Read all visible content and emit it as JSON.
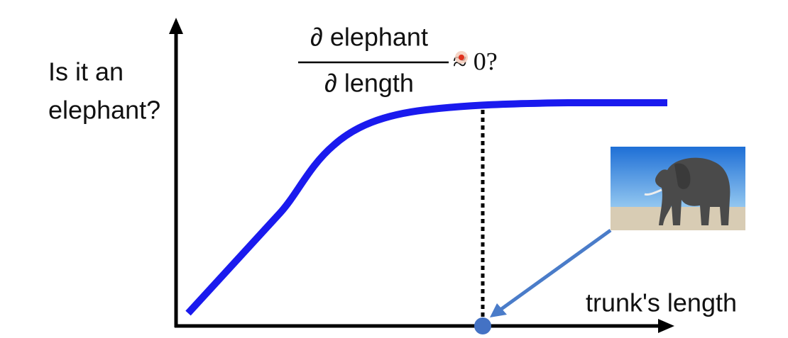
{
  "y_label": [
    "Is it an",
    "elephant?"
  ],
  "fraction": {
    "numerator": "∂ elephant",
    "denominator": "∂ length"
  },
  "approx": "≈ 0?",
  "x_label": "trunk's length"
}
